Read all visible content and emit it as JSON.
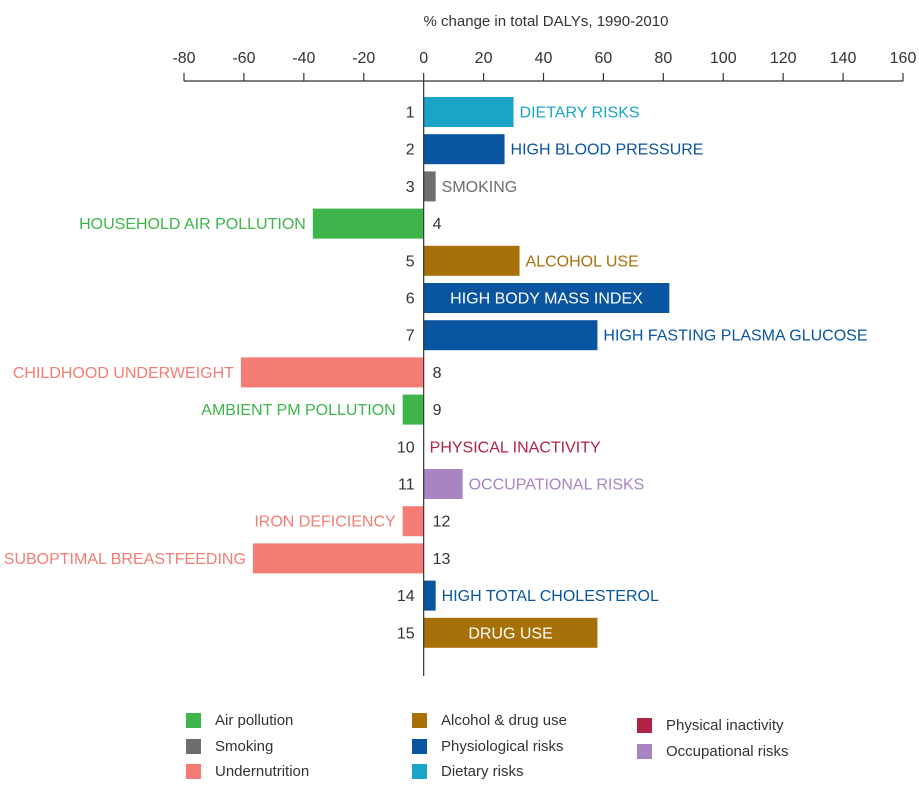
{
  "chart_data": {
    "type": "bar",
    "orientation": "horizontal",
    "title": "% change  in total DALYs, 1990-2010",
    "xlim": [
      -80,
      160
    ],
    "x_ticks": [
      -80,
      -60,
      -40,
      -20,
      0,
      20,
      40,
      60,
      80,
      100,
      120,
      140,
      160
    ],
    "grid": false,
    "bars": [
      {
        "rank": "1",
        "label": "DIETARY RISKS",
        "value": 30,
        "group": "dietary"
      },
      {
        "rank": "2",
        "label": "HIGH BLOOD PRESSURE",
        "value": 27,
        "group": "physiological"
      },
      {
        "rank": "3",
        "label": "SMOKING",
        "value": 4,
        "group": "smoking"
      },
      {
        "rank": "4",
        "label": "HOUSEHOLD AIR POLLUTION",
        "value": -37,
        "group": "air"
      },
      {
        "rank": "5",
        "label": "ALCOHOL USE",
        "value": 32,
        "group": "alcohol"
      },
      {
        "rank": "6",
        "label": "HIGH BODY MASS INDEX",
        "value": 82,
        "group": "physiological",
        "label_inside": true
      },
      {
        "rank": "7",
        "label": "HIGH FASTING PLASMA GLUCOSE",
        "value": 58,
        "group": "physiological"
      },
      {
        "rank": "8",
        "label": "CHILDHOOD UNDERWEIGHT",
        "value": -61,
        "group": "undernutrition"
      },
      {
        "rank": "9",
        "label": "AMBIENT PM POLLUTION",
        "value": -7,
        "group": "air"
      },
      {
        "rank": "10",
        "label": "PHYSICAL INACTIVITY",
        "value": 0,
        "group": "inactivity"
      },
      {
        "rank": "11",
        "label": "OCCUPATIONAL RISKS",
        "value": 13,
        "group": "occupational"
      },
      {
        "rank": "12",
        "label": "IRON DEFICIENCY",
        "value": -7,
        "group": "undernutrition"
      },
      {
        "rank": "13",
        "label": "SUBOPTIMAL BREASTFEEDING",
        "value": -57,
        "group": "undernutrition"
      },
      {
        "rank": "14",
        "label": "HIGH TOTAL CHOLESTEROL",
        "value": 4,
        "group": "physiological"
      },
      {
        "rank": "15",
        "label": "DRUG USE",
        "value": 58,
        "group": "alcohol",
        "label_inside": true
      }
    ],
    "groups": {
      "air": {
        "name": "Air pollution",
        "color": "#3db54a"
      },
      "smoking": {
        "name": "Smoking",
        "color": "#6d6e71"
      },
      "undernutrition": {
        "name": "Undernutrition",
        "color": "#f47c74"
      },
      "alcohol": {
        "name": "Alcohol & drug use",
        "color": "#a87008"
      },
      "physiological": {
        "name": "Physiological risks",
        "color": "#0a55a0"
      },
      "dietary": {
        "name": "Dietary risks",
        "color": "#1aa4c8"
      },
      "inactivity": {
        "name": "Physical inactivity",
        "color": "#b22245"
      },
      "occupational": {
        "name": "Occupational risks",
        "color": "#a885c2"
      }
    },
    "legend_order": [
      "air",
      "smoking",
      "undernutrition",
      "alcohol",
      "physiological",
      "dietary",
      "inactivity",
      "occupational"
    ],
    "legend_placement": "bottom"
  }
}
